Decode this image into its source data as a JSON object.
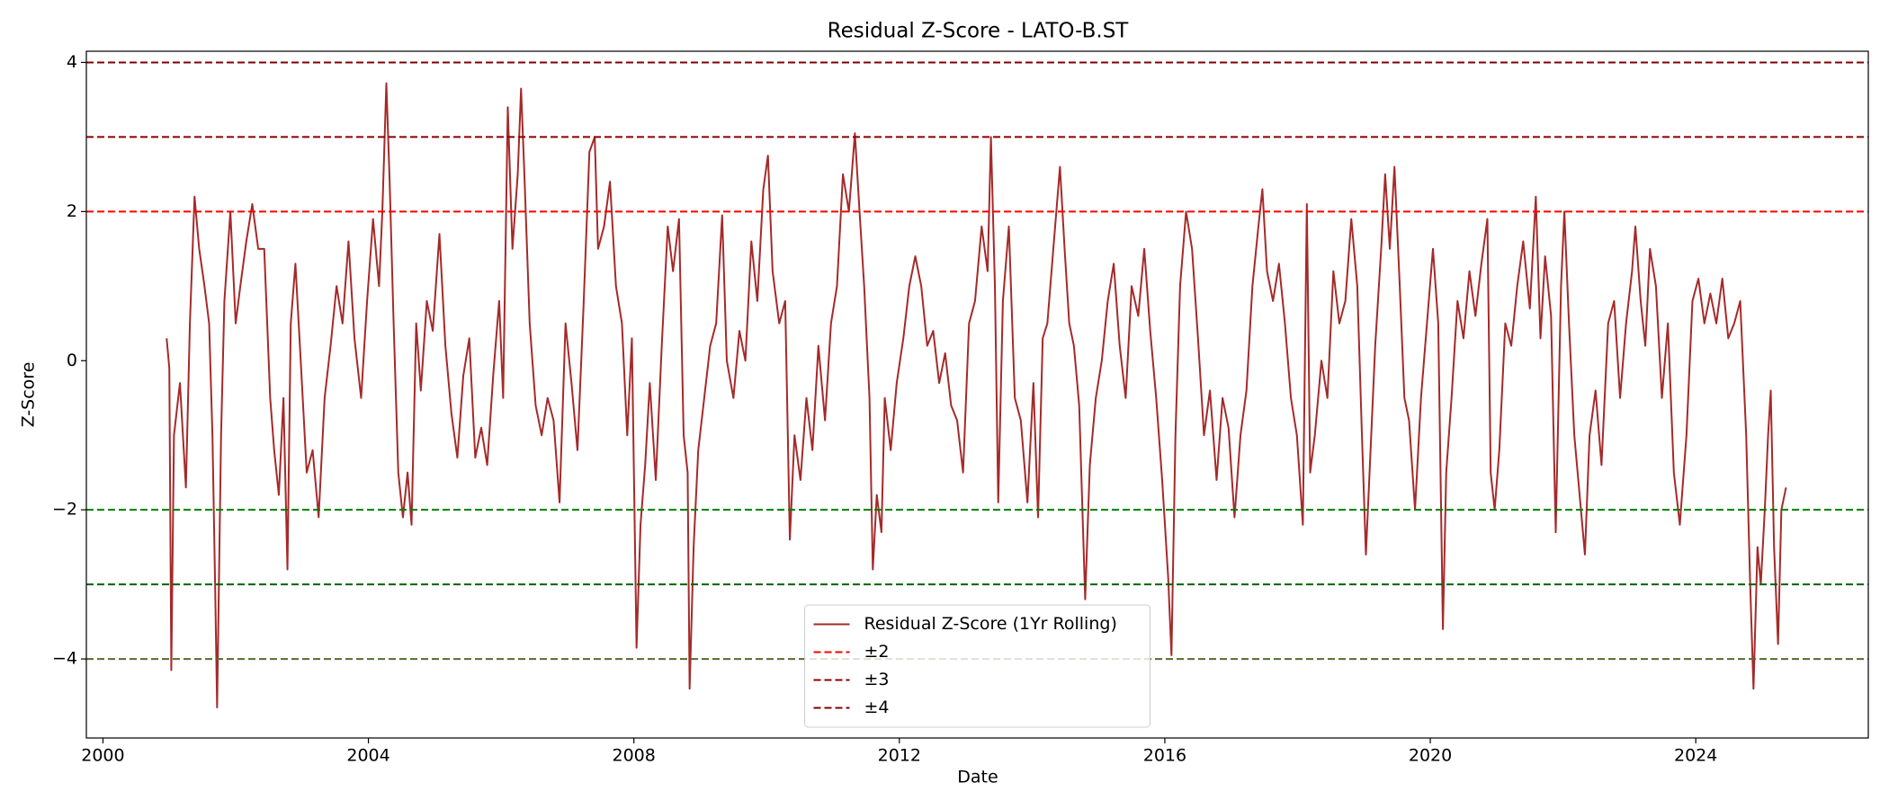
{
  "chart_data": {
    "type": "line",
    "title": "Residual Z-Score - LATO-B.ST",
    "x_label": "Date",
    "y_label": "Z-Score",
    "xlim": [
      1999.75,
      2026.6
    ],
    "ylim": [
      -5.06,
      4.15
    ],
    "xticks": [
      2000,
      2004,
      2008,
      2012,
      2016,
      2020,
      2024
    ],
    "yticks": [
      {
        "value": -4,
        "label": "−4"
      },
      {
        "value": -2,
        "label": "−2"
      },
      0,
      2,
      4
    ],
    "grid": false,
    "legend_loc": "lower center",
    "x": [
      2000.96,
      2001.0,
      2001.03,
      2001.07,
      2001.16,
      2001.25,
      2001.31,
      2001.38,
      2001.45,
      2001.53,
      2001.6,
      2001.65,
      2001.69,
      2001.72,
      2001.78,
      2001.83,
      2001.92,
      2002.0,
      2002.07,
      2002.16,
      2002.25,
      2002.34,
      2002.43,
      2002.52,
      2002.58,
      2002.65,
      2002.72,
      2002.78,
      2002.83,
      2002.9,
      2002.98,
      2003.07,
      2003.16,
      2003.25,
      2003.34,
      2003.43,
      2003.52,
      2003.61,
      2003.7,
      2003.79,
      2003.89,
      2003.98,
      2004.07,
      2004.16,
      2004.21,
      2004.27,
      2004.32,
      2004.38,
      2004.45,
      2004.52,
      2004.59,
      2004.65,
      2004.72,
      2004.79,
      2004.88,
      2004.97,
      2005.07,
      2005.16,
      2005.25,
      2005.34,
      2005.43,
      2005.52,
      2005.61,
      2005.7,
      2005.79,
      2005.88,
      2005.97,
      2006.03,
      2006.1,
      2006.17,
      2006.25,
      2006.3,
      2006.35,
      2006.43,
      2006.52,
      2006.61,
      2006.7,
      2006.79,
      2006.88,
      2006.97,
      2007.06,
      2007.15,
      2007.24,
      2007.33,
      2007.41,
      2007.46,
      2007.55,
      2007.64,
      2007.73,
      2007.82,
      2007.9,
      2007.97,
      2008.04,
      2008.1,
      2008.17,
      2008.24,
      2008.33,
      2008.42,
      2008.51,
      2008.59,
      2008.68,
      2008.75,
      2008.81,
      2008.84,
      2008.9,
      2008.97,
      2009.06,
      2009.15,
      2009.24,
      2009.33,
      2009.4,
      2009.5,
      2009.59,
      2009.68,
      2009.77,
      2009.86,
      2009.95,
      2010.02,
      2010.09,
      2010.19,
      2010.28,
      2010.35,
      2010.42,
      2010.51,
      2010.6,
      2010.69,
      2010.78,
      2010.88,
      2010.97,
      2011.06,
      2011.15,
      2011.24,
      2011.33,
      2011.4,
      2011.47,
      2011.55,
      2011.6,
      2011.66,
      2011.73,
      2011.78,
      2011.87,
      2011.96,
      2012.06,
      2012.15,
      2012.24,
      2012.33,
      2012.42,
      2012.51,
      2012.6,
      2012.69,
      2012.78,
      2012.87,
      2012.96,
      2013.05,
      2013.14,
      2013.24,
      2013.33,
      2013.38,
      2013.44,
      2013.49,
      2013.56,
      2013.65,
      2013.74,
      2013.83,
      2013.93,
      2014.02,
      2014.09,
      2014.16,
      2014.23,
      2014.32,
      2014.42,
      2014.49,
      2014.56,
      2014.63,
      2014.71,
      2014.8,
      2014.87,
      2014.96,
      2015.05,
      2015.14,
      2015.23,
      2015.32,
      2015.41,
      2015.5,
      2015.6,
      2015.69,
      2015.78,
      2015.87,
      2015.96,
      2016.05,
      2016.1,
      2016.16,
      2016.23,
      2016.32,
      2016.41,
      2016.5,
      2016.59,
      2016.68,
      2016.78,
      2016.87,
      2016.96,
      2017.05,
      2017.14,
      2017.23,
      2017.32,
      2017.41,
      2017.47,
      2017.54,
      2017.63,
      2017.72,
      2017.81,
      2017.9,
      2017.99,
      2018.08,
      2018.14,
      2018.19,
      2018.26,
      2018.36,
      2018.45,
      2018.54,
      2018.63,
      2018.72,
      2018.81,
      2018.9,
      2018.97,
      2019.03,
      2019.1,
      2019.17,
      2019.26,
      2019.32,
      2019.39,
      2019.46,
      2019.54,
      2019.61,
      2019.68,
      2019.77,
      2019.86,
      2019.95,
      2020.04,
      2020.12,
      2020.19,
      2020.24,
      2020.32,
      2020.41,
      2020.5,
      2020.59,
      2020.68,
      2020.77,
      2020.86,
      2020.91,
      2020.97,
      2021.04,
      2021.13,
      2021.22,
      2021.31,
      2021.4,
      2021.5,
      2021.59,
      2021.66,
      2021.73,
      2021.82,
      2021.89,
      2021.97,
      2022.02,
      2022.09,
      2022.17,
      2022.26,
      2022.33,
      2022.4,
      2022.49,
      2022.58,
      2022.68,
      2022.77,
      2022.86,
      2022.95,
      2023.04,
      2023.09,
      2023.17,
      2023.24,
      2023.31,
      2023.4,
      2023.49,
      2023.58,
      2023.67,
      2023.76,
      2023.86,
      2023.95,
      2024.04,
      2024.13,
      2024.22,
      2024.31,
      2024.4,
      2024.49,
      2024.58,
      2024.67,
      2024.76,
      2024.82,
      2024.87,
      2024.93,
      2024.98,
      2025.04,
      2025.09,
      2025.13,
      2025.18,
      2025.24,
      2025.29,
      2025.36
    ],
    "series": [
      {
        "name": "Residual Z-Score (1Yr Rolling)",
        "color": "#a52a2a",
        "values": [
          0.3,
          -0.1,
          -4.15,
          -1.0,
          -0.3,
          -1.7,
          0.5,
          2.2,
          1.5,
          1.0,
          0.5,
          -1.0,
          -3.0,
          -4.65,
          -1.0,
          0.8,
          2.0,
          0.5,
          1.0,
          1.6,
          2.1,
          1.5,
          1.5,
          -0.5,
          -1.2,
          -1.8,
          -0.5,
          -2.8,
          0.5,
          1.3,
          0.0,
          -1.5,
          -1.2,
          -2.1,
          -0.5,
          0.2,
          1.0,
          0.5,
          1.6,
          0.3,
          -0.5,
          0.8,
          1.9,
          1.0,
          2.0,
          3.72,
          2.4,
          0.5,
          -1.5,
          -2.1,
          -1.5,
          -2.2,
          0.5,
          -0.4,
          0.8,
          0.4,
          1.7,
          0.2,
          -0.7,
          -1.3,
          -0.2,
          0.3,
          -1.3,
          -0.9,
          -1.4,
          -0.2,
          0.8,
          -0.5,
          3.4,
          1.5,
          2.5,
          3.65,
          2.5,
          0.5,
          -0.6,
          -1.0,
          -0.5,
          -0.8,
          -1.9,
          0.5,
          -0.3,
          -1.2,
          0.7,
          2.8,
          3.0,
          1.5,
          1.8,
          2.4,
          1.0,
          0.5,
          -1.0,
          0.3,
          -3.85,
          -2.2,
          -1.4,
          -0.3,
          -1.6,
          0.2,
          1.8,
          1.2,
          1.9,
          -1.0,
          -1.5,
          -4.4,
          -2.5,
          -1.2,
          -0.5,
          0.2,
          0.5,
          1.95,
          0.0,
          -0.5,
          0.4,
          0.0,
          1.6,
          0.8,
          2.3,
          2.75,
          1.2,
          0.5,
          0.8,
          -2.4,
          -1.0,
          -1.6,
          -0.5,
          -1.2,
          0.2,
          -0.8,
          0.5,
          1.0,
          2.5,
          2.0,
          3.05,
          2.0,
          1.0,
          -0.5,
          -2.8,
          -1.8,
          -2.3,
          -0.5,
          -1.2,
          -0.3,
          0.3,
          1.0,
          1.4,
          1.0,
          0.2,
          0.4,
          -0.3,
          0.1,
          -0.6,
          -0.8,
          -1.5,
          0.5,
          0.8,
          1.8,
          1.2,
          3.0,
          1.0,
          -1.9,
          0.8,
          1.8,
          -0.5,
          -0.8,
          -1.9,
          -0.3,
          -2.1,
          0.3,
          0.5,
          1.5,
          2.6,
          1.5,
          0.5,
          0.2,
          -0.6,
          -3.2,
          -1.4,
          -0.5,
          0.0,
          0.8,
          1.3,
          0.2,
          -0.5,
          1.0,
          0.6,
          1.5,
          0.4,
          -0.5,
          -1.6,
          -2.9,
          -3.95,
          -1.0,
          1.0,
          2.0,
          1.5,
          0.3,
          -1.0,
          -0.4,
          -1.6,
          -0.5,
          -0.9,
          -2.1,
          -1.0,
          -0.4,
          1.0,
          1.8,
          2.3,
          1.2,
          0.8,
          1.3,
          0.5,
          -0.5,
          -1.0,
          -2.2,
          2.1,
          -1.5,
          -1.0,
          0.0,
          -0.5,
          1.2,
          0.5,
          0.8,
          1.9,
          1.0,
          -1.0,
          -2.6,
          -1.2,
          0.2,
          1.5,
          2.5,
          1.5,
          2.6,
          1.0,
          -0.5,
          -0.8,
          -2.0,
          -0.5,
          0.5,
          1.5,
          0.5,
          -3.6,
          -1.5,
          -0.5,
          0.8,
          0.3,
          1.2,
          0.6,
          1.3,
          1.9,
          -1.5,
          -2.0,
          -1.2,
          0.5,
          0.2,
          1.0,
          1.6,
          0.7,
          2.2,
          0.3,
          1.4,
          0.6,
          -2.3,
          1.0,
          2.0,
          0.5,
          -1.0,
          -1.9,
          -2.6,
          -1.0,
          -0.4,
          -1.4,
          0.5,
          0.8,
          -0.5,
          0.5,
          1.2,
          1.8,
          0.8,
          0.2,
          1.5,
          1.0,
          -0.5,
          0.5,
          -1.5,
          -2.2,
          -1.0,
          0.8,
          1.1,
          0.5,
          0.9,
          0.5,
          1.1,
          0.3,
          0.5,
          0.8,
          -1.0,
          -3.0,
          -4.4,
          -2.5,
          -3.0,
          -2.0,
          -1.0,
          -0.4,
          -2.5,
          -3.8,
          -2.0,
          -1.7
        ]
      }
    ],
    "reference_lines": [
      {
        "name": "±2",
        "values": [
          2,
          -2
        ],
        "colors": [
          "#ff0000",
          "#008000"
        ]
      },
      {
        "name": "±3",
        "values": [
          3,
          -3
        ],
        "colors": [
          "#8b0000",
          "#006400"
        ]
      },
      {
        "name": "±4",
        "values": [
          4,
          -4
        ],
        "colors": [
          "#800000",
          "#556b2f"
        ]
      }
    ]
  }
}
